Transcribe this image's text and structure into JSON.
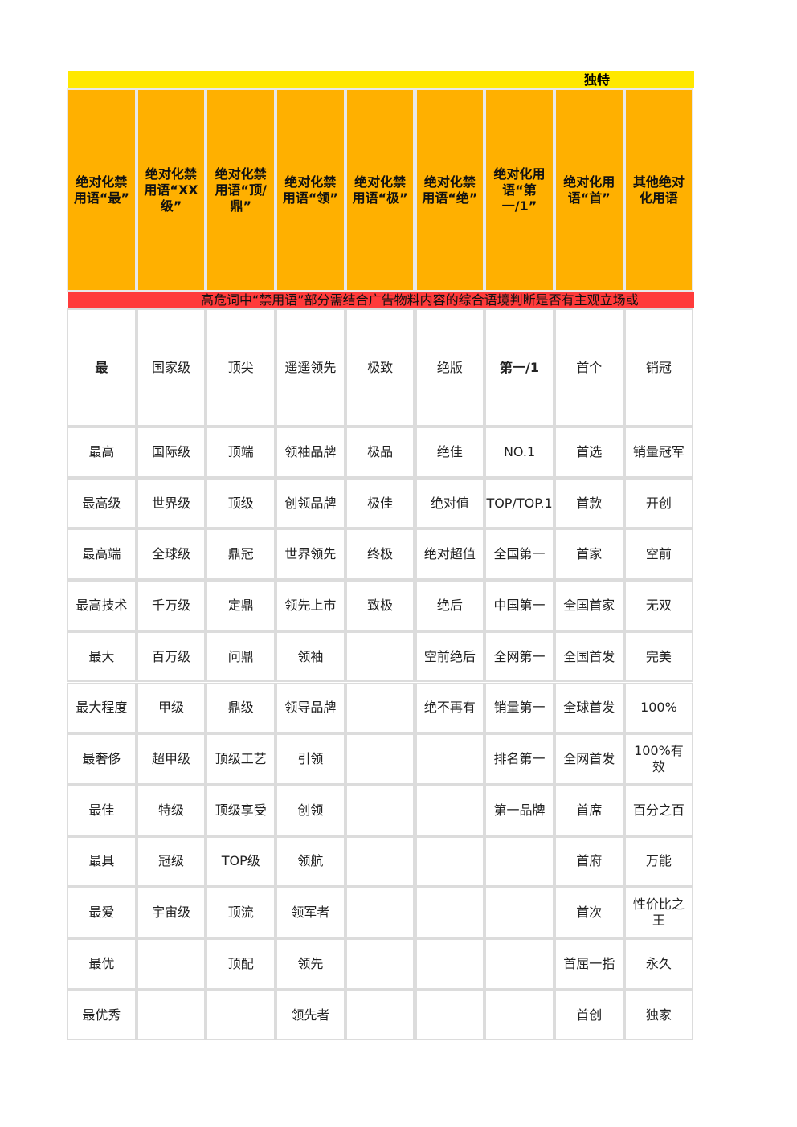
{
  "title": "独特",
  "headers": [
    "绝对化禁用语“最”",
    "绝对化禁用语“XX级”",
    "绝对化禁用语“顶/鼎”",
    "绝对化禁用语“领”",
    "绝对化禁用语“极”",
    "绝对化禁用语“绝”",
    "绝对化用语“第一/1”",
    "绝对化用语“首”",
    "其他绝对化用语"
  ],
  "notice": "高危词中“禁用语”部分需结合广告物料内容的综合语境判断是否有主观立场或",
  "rows": [
    [
      "最",
      "国家级",
      "顶尖",
      "遥遥领先",
      "极致",
      "绝版",
      "第一/1",
      "首个",
      "销冠"
    ],
    [
      "最高",
      "国际级",
      "顶端",
      "领袖品牌",
      "极品",
      "绝佳",
      "NO.1",
      "首选",
      "销量冠军"
    ],
    [
      "最高级",
      "世界级",
      "顶级",
      "创领品牌",
      "极佳",
      "绝对值",
      "TOP/TOP.1",
      "首款",
      "开创"
    ],
    [
      "最高端",
      "全球级",
      "鼎冠",
      "世界领先",
      "终极",
      "绝对超值",
      "全国第一",
      "首家",
      "空前"
    ],
    [
      "最高技术",
      "千万级",
      "定鼎",
      "领先上市",
      "致极",
      "绝后",
      "中国第一",
      "全国首家",
      "无双"
    ],
    [
      "最大",
      "百万级",
      "问鼎",
      "领袖",
      null,
      "空前绝后",
      "全网第一",
      "全国首发",
      "完美"
    ],
    [
      "最大程度",
      "甲级",
      "鼎级",
      "领导品牌",
      null,
      "绝不再有",
      "销量第一",
      "全球首发",
      "100%"
    ],
    [
      "最奢侈",
      "超甲级",
      "顶级工艺",
      "引领",
      null,
      null,
      "排名第一",
      "全网首发",
      "100%有效"
    ],
    [
      "最佳",
      "特级",
      "顶级享受",
      "创领",
      null,
      null,
      "第一品牌",
      "首席",
      "百分之百"
    ],
    [
      "最具",
      "冠级",
      "TOP级",
      "领航",
      null,
      null,
      null,
      "首府",
      "万能"
    ],
    [
      "最爱",
      "宇宙级",
      "顶流",
      "领军者",
      null,
      null,
      null,
      "首次",
      "性价比之王"
    ],
    [
      "最优",
      null,
      "顶配",
      "领先",
      null,
      null,
      null,
      "首屈一指",
      "永久"
    ],
    [
      "最优秀",
      null,
      null,
      "领先者",
      null,
      null,
      null,
      "首创",
      "独家"
    ]
  ]
}
